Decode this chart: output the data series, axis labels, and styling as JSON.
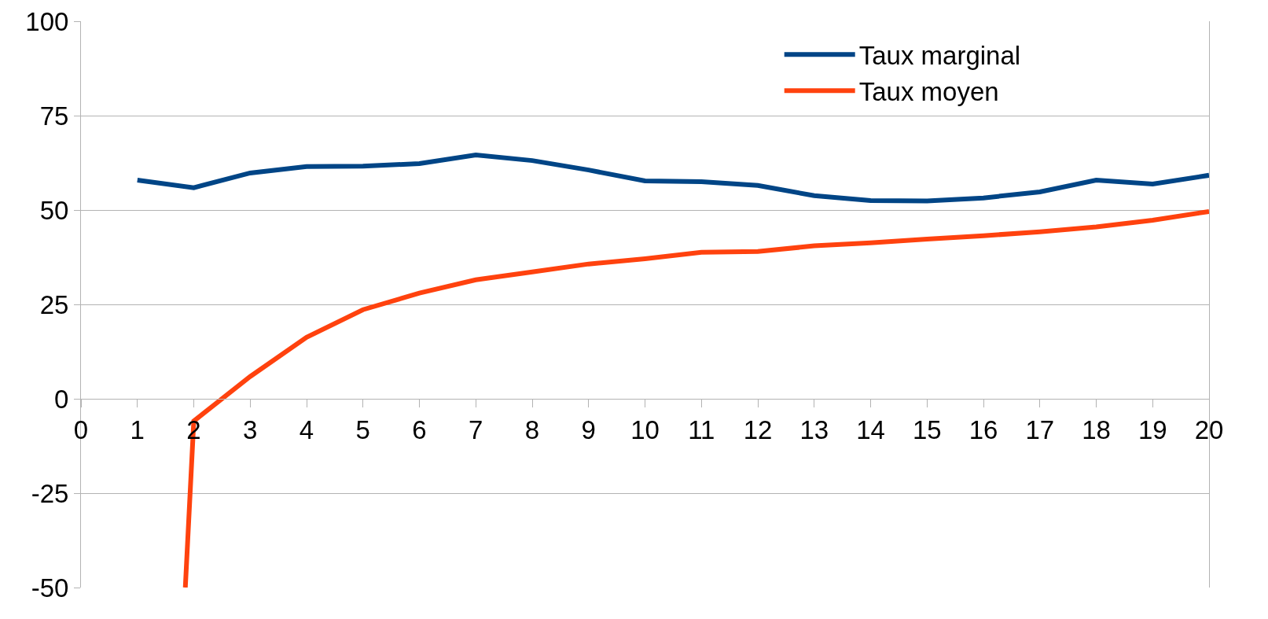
{
  "chart_data": {
    "type": "line",
    "xlim": [
      0,
      20
    ],
    "xticks": [
      0,
      1,
      2,
      3,
      4,
      5,
      6,
      7,
      8,
      9,
      10,
      11,
      12,
      13,
      14,
      15,
      16,
      17,
      18,
      19,
      20
    ],
    "ylim": [
      -50,
      100
    ],
    "yticks": [
      -50,
      -25,
      0,
      25,
      50,
      75,
      100
    ],
    "grid": "y",
    "legend": "top right",
    "marker": "none",
    "line_style": "solid",
    "series": [
      {
        "name": "Taux marginal",
        "color": "#004586",
        "x": [
          1,
          2,
          3,
          4,
          5,
          6,
          7,
          8,
          9,
          10,
          11,
          12,
          13,
          14,
          15,
          16,
          17,
          18,
          19,
          20
        ],
        "values": [
          57.9,
          55.9,
          59.8,
          61.5,
          61.6,
          62.3,
          64.6,
          63.1,
          60.6,
          57.7,
          57.5,
          56.5,
          53.8,
          52.5,
          52.4,
          53.2,
          54.8,
          57.9,
          56.9,
          59.2
        ]
      },
      {
        "name": "Taux moyen",
        "color": "#ff420e",
        "x": [
          1.85,
          2,
          3,
          4,
          5,
          6,
          7,
          8,
          9,
          10,
          11,
          12,
          13,
          14,
          15,
          16,
          17,
          18,
          19,
          20
        ],
        "values": [
          -50,
          -5.9,
          5.9,
          16.3,
          23.6,
          28.0,
          31.5,
          33.6,
          35.7,
          37.1,
          38.8,
          39.0,
          40.5,
          41.3,
          42.3,
          43.2,
          44.2,
          45.5,
          47.3,
          49.6
        ]
      }
    ]
  }
}
